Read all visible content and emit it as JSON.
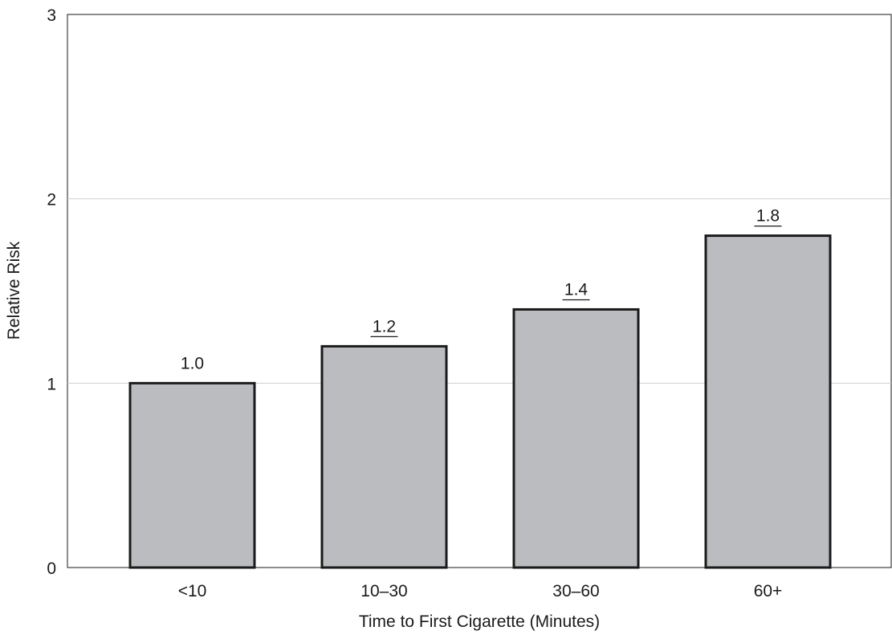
{
  "chart_data": {
    "type": "bar",
    "categories": [
      "<10",
      "10–30",
      "30–60",
      "60+"
    ],
    "values": [
      1.0,
      1.2,
      1.4,
      1.8
    ],
    "data_labels": [
      "1.0",
      "1.2",
      "1.4",
      "1.8"
    ],
    "underlined_labels": [
      false,
      true,
      true,
      true
    ],
    "title": "",
    "xlabel": "Time to First Cigarette (Minutes)",
    "ylabel": "Relative Risk",
    "ylim": [
      0,
      3
    ],
    "yticks": [
      0,
      1,
      2,
      3
    ],
    "ytick_labels": [
      "0",
      "1",
      "2",
      "3"
    ],
    "grid": true,
    "legend": "none",
    "colors": {
      "bar_fill": "#bbbcc0",
      "bar_stroke": "#1a1a1a",
      "grid": "#cfcfcf",
      "axis": "#1a1a1a"
    }
  }
}
